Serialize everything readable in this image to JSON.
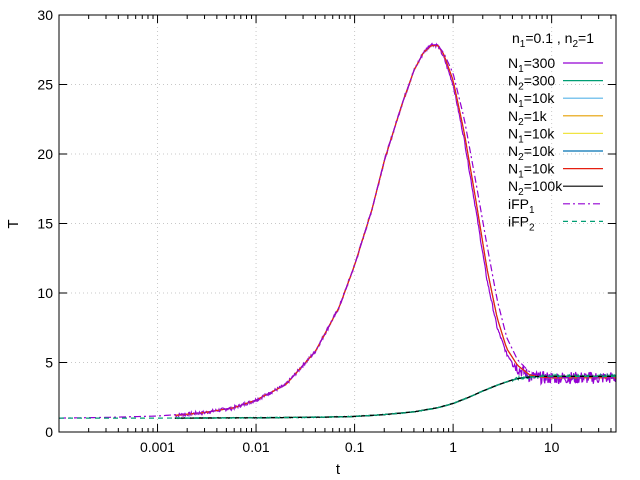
{
  "chart_data": {
    "type": "line",
    "title": "",
    "xlabel": "t",
    "ylabel": "T",
    "xscale": "log",
    "xlim": [
      0.0001,
      45
    ],
    "ylim": [
      0,
      30
    ],
    "grid": true,
    "legend_placement": "top-right",
    "x_ticks": [
      {
        "value": 0.001,
        "label": "0.001"
      },
      {
        "value": 0.01,
        "label": "0.01"
      },
      {
        "value": 0.1,
        "label": "0.1"
      },
      {
        "value": 1,
        "label": "1"
      },
      {
        "value": 10,
        "label": "10"
      }
    ],
    "y_ticks": [
      {
        "value": 0,
        "label": "0"
      },
      {
        "value": 5,
        "label": "5"
      },
      {
        "value": 10,
        "label": "10"
      },
      {
        "value": 15,
        "label": "15"
      },
      {
        "value": 20,
        "label": "20"
      },
      {
        "value": 25,
        "label": "25"
      },
      {
        "value": 30,
        "label": "30"
      }
    ],
    "legend_header": {
      "main": "n",
      "parts": [
        [
          "n",
          "1",
          "=0.1 , "
        ],
        [
          "n",
          "2",
          "=1"
        ]
      ]
    },
    "series": [
      {
        "name": "N1=300",
        "label_main": "N",
        "label_sub": "1",
        "label_rest": "=300",
        "color": "#9400d3",
        "dash": "",
        "noisy": true,
        "x": [
          0.0015,
          0.003,
          0.006,
          0.01,
          0.02,
          0.04,
          0.07,
          0.1,
          0.15,
          0.2,
          0.3,
          0.4,
          0.5,
          0.6,
          0.7,
          0.8,
          1.0,
          1.3,
          1.7,
          2.2,
          2.8,
          3.5,
          4.5,
          6,
          8,
          10,
          15,
          20,
          30,
          45
        ],
        "y": [
          1.2,
          1.4,
          1.75,
          2.3,
          3.4,
          5.8,
          9.0,
          12.0,
          16.0,
          19.5,
          23.5,
          26.0,
          27.3,
          27.9,
          27.8,
          27.0,
          25.0,
          21.0,
          16.0,
          11.0,
          7.5,
          5.6,
          4.6,
          4.0,
          3.9,
          3.9,
          3.9,
          3.9,
          3.9,
          3.9
        ]
      },
      {
        "name": "N2=300",
        "label_main": "N",
        "label_sub": "2",
        "label_rest": "=300",
        "color": "#009e73",
        "dash": "",
        "noisy": true,
        "x": [
          0.0015,
          0.01,
          0.05,
          0.1,
          0.2,
          0.4,
          0.7,
          1.0,
          1.5,
          2.0,
          3.0,
          4.0,
          5.0,
          7.0,
          10,
          20,
          45
        ],
        "y": [
          1.0,
          1.02,
          1.07,
          1.12,
          1.25,
          1.45,
          1.75,
          2.05,
          2.55,
          2.95,
          3.45,
          3.75,
          3.9,
          4.0,
          4.0,
          4.0,
          4.0
        ]
      },
      {
        "name": "N1=10k",
        "label_main": "N",
        "label_sub": "1",
        "label_rest": "=10k",
        "color": "#56b4e9",
        "dash": "",
        "noisy": false,
        "x": [
          0.0015,
          0.003,
          0.006,
          0.01,
          0.02,
          0.04,
          0.07,
          0.1,
          0.15,
          0.2,
          0.3,
          0.4,
          0.5,
          0.6,
          0.7,
          0.8,
          1.0,
          1.3,
          1.7,
          2.2,
          2.8,
          3.5,
          4.5,
          6,
          8,
          10,
          15,
          20,
          30,
          45
        ],
        "y": [
          1.2,
          1.4,
          1.75,
          2.3,
          3.4,
          5.8,
          9.0,
          12.0,
          16.0,
          19.5,
          23.5,
          26.0,
          27.3,
          27.8,
          27.8,
          27.2,
          25.3,
          21.5,
          16.7,
          11.8,
          8.2,
          6.0,
          4.8,
          4.1,
          3.95,
          3.9,
          3.9,
          3.9,
          3.9,
          3.9
        ]
      },
      {
        "name": "N2=1k",
        "label_main": "N",
        "label_sub": "2",
        "label_rest": "=1k",
        "color": "#e69f00",
        "dash": "",
        "noisy": false,
        "x": [
          0.0015,
          0.01,
          0.05,
          0.1,
          0.2,
          0.4,
          0.7,
          1.0,
          1.5,
          2.0,
          3.0,
          4.0,
          5.0,
          7.0,
          10,
          20,
          45
        ],
        "y": [
          1.0,
          1.02,
          1.07,
          1.12,
          1.25,
          1.45,
          1.75,
          2.05,
          2.55,
          2.95,
          3.45,
          3.75,
          3.9,
          4.0,
          4.0,
          4.0,
          4.0
        ]
      },
      {
        "name": "N1=10k",
        "label_main": "N",
        "label_sub": "1",
        "label_rest": "=10k",
        "color": "#f0e442",
        "dash": "",
        "noisy": false,
        "x": [
          0.0015,
          0.003,
          0.006,
          0.01,
          0.02,
          0.04,
          0.07,
          0.1,
          0.15,
          0.2,
          0.3,
          0.4,
          0.5,
          0.6,
          0.7,
          0.8,
          1.0,
          1.3,
          1.7,
          2.2,
          2.8,
          3.5,
          4.5,
          6,
          8,
          10,
          15,
          20,
          30,
          45
        ],
        "y": [
          1.2,
          1.4,
          1.75,
          2.3,
          3.4,
          5.8,
          9.0,
          12.0,
          16.0,
          19.5,
          23.5,
          26.0,
          27.3,
          27.8,
          27.8,
          27.2,
          25.3,
          21.5,
          16.7,
          11.8,
          8.2,
          6.0,
          4.8,
          4.1,
          3.95,
          3.9,
          3.9,
          3.9,
          3.9,
          3.9
        ]
      },
      {
        "name": "N2=10k",
        "label_main": "N",
        "label_sub": "2",
        "label_rest": "=10k",
        "color": "#0072b2",
        "dash": "",
        "noisy": false,
        "x": [
          0.0015,
          0.01,
          0.05,
          0.1,
          0.2,
          0.4,
          0.7,
          1.0,
          1.5,
          2.0,
          3.0,
          4.0,
          5.0,
          7.0,
          10,
          20,
          45
        ],
        "y": [
          1.0,
          1.02,
          1.07,
          1.12,
          1.25,
          1.45,
          1.75,
          2.05,
          2.55,
          2.95,
          3.45,
          3.75,
          3.9,
          4.0,
          4.0,
          4.0,
          4.0
        ]
      },
      {
        "name": "N1=10k",
        "label_main": "N",
        "label_sub": "1",
        "label_rest": "=10k",
        "color": "#e51e10",
        "dash": "",
        "noisy": false,
        "x": [
          0.0015,
          0.003,
          0.006,
          0.01,
          0.02,
          0.04,
          0.07,
          0.1,
          0.15,
          0.2,
          0.3,
          0.4,
          0.5,
          0.6,
          0.7,
          0.8,
          1.0,
          1.3,
          1.7,
          2.2,
          2.8,
          3.5,
          4.5,
          6,
          8,
          10,
          15,
          20,
          30,
          45
        ],
        "y": [
          1.2,
          1.4,
          1.75,
          2.3,
          3.4,
          5.8,
          9.0,
          12.0,
          16.0,
          19.5,
          23.5,
          26.0,
          27.3,
          27.8,
          27.8,
          27.2,
          25.3,
          21.5,
          16.7,
          11.8,
          8.2,
          6.0,
          4.8,
          4.1,
          3.95,
          3.9,
          3.9,
          3.9,
          3.9,
          3.9
        ]
      },
      {
        "name": "N2=100k",
        "label_main": "N",
        "label_sub": "2",
        "label_rest": "=100k",
        "color": "#000000",
        "dash": "",
        "noisy": false,
        "x": [
          0.0015,
          0.01,
          0.05,
          0.1,
          0.2,
          0.4,
          0.7,
          1.0,
          1.5,
          2.0,
          3.0,
          4.0,
          5.0,
          7.0,
          10,
          20,
          45
        ],
        "y": [
          1.0,
          1.02,
          1.07,
          1.12,
          1.25,
          1.45,
          1.75,
          2.05,
          2.55,
          2.95,
          3.45,
          3.75,
          3.9,
          4.0,
          4.0,
          4.0,
          4.0
        ]
      },
      {
        "name": "iFP1",
        "label_main": "iFP",
        "label_sub": "1",
        "label_rest": "",
        "color": "#9400d3",
        "dash": "7,3,2,3",
        "noisy": false,
        "x": [
          0.0001,
          0.0003,
          0.001,
          0.003,
          0.006,
          0.01,
          0.02,
          0.04,
          0.07,
          0.1,
          0.15,
          0.2,
          0.3,
          0.4,
          0.5,
          0.6,
          0.7,
          0.8,
          1.0,
          1.3,
          1.7,
          2.2,
          2.8,
          3.5,
          4.5,
          6,
          8,
          10,
          15,
          20,
          30,
          45
        ],
        "y": [
          1.0,
          1.05,
          1.15,
          1.4,
          1.75,
          2.3,
          3.4,
          5.8,
          9.0,
          12.0,
          16.0,
          19.5,
          23.5,
          26.0,
          27.3,
          27.9,
          27.8,
          27.3,
          25.8,
          22.5,
          18.0,
          13.5,
          9.5,
          6.8,
          5.2,
          4.3,
          4.0,
          3.95,
          3.9,
          3.9,
          3.9,
          3.9
        ]
      },
      {
        "name": "iFP2",
        "label_main": "iFP",
        "label_sub": "2",
        "label_rest": "",
        "color": "#009e73",
        "dash": "5,4",
        "noisy": false,
        "x": [
          0.0001,
          0.001,
          0.01,
          0.05,
          0.1,
          0.2,
          0.4,
          0.7,
          1.0,
          1.5,
          2.0,
          3.0,
          4.0,
          5.0,
          7.0,
          10,
          20,
          45
        ],
        "y": [
          1.0,
          1.0,
          1.02,
          1.07,
          1.12,
          1.25,
          1.45,
          1.75,
          2.05,
          2.55,
          2.95,
          3.45,
          3.75,
          3.9,
          4.0,
          4.0,
          4.0,
          4.0
        ]
      }
    ]
  }
}
